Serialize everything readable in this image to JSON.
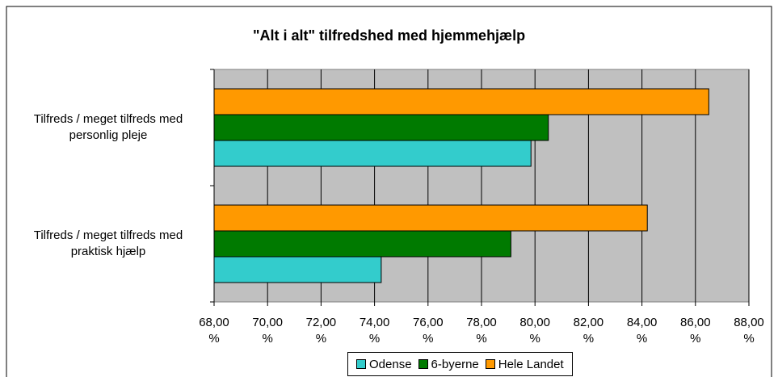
{
  "chart_data": {
    "type": "barh",
    "title": "\"Alt i alt\" tilfredshed med hjemmehjælp",
    "categories": [
      "Tilfreds / meget tilfreds med personlig pleje",
      "Tilfreds / meget tilfreds med praktisk hjælp"
    ],
    "series": [
      {
        "name": "Odense",
        "color": "#33cccc",
        "values": [
          79.85,
          74.25
        ]
      },
      {
        "name": "6-byerne",
        "color": "#007a00",
        "values": [
          80.5,
          79.1
        ]
      },
      {
        "name": "Hele Landet",
        "color": "#ff9900",
        "values": [
          86.5,
          84.2
        ]
      }
    ],
    "xlim": [
      68,
      88
    ],
    "xticks": [
      {
        "value": 68,
        "label": "68,00 %"
      },
      {
        "value": 70,
        "label": "70,00 %"
      },
      {
        "value": 72,
        "label": "72,00 %"
      },
      {
        "value": 74,
        "label": "74,00 %"
      },
      {
        "value": 76,
        "label": "76,00 %"
      },
      {
        "value": 78,
        "label": "78,00 %"
      },
      {
        "value": 80,
        "label": "80,00 %"
      },
      {
        "value": 82,
        "label": "82,00 %"
      },
      {
        "value": 84,
        "label": "84,00 %"
      },
      {
        "value": 86,
        "label": "86,00 %"
      },
      {
        "value": 88,
        "label": "88,00 %"
      }
    ],
    "grid": true,
    "legend": "bottom"
  }
}
